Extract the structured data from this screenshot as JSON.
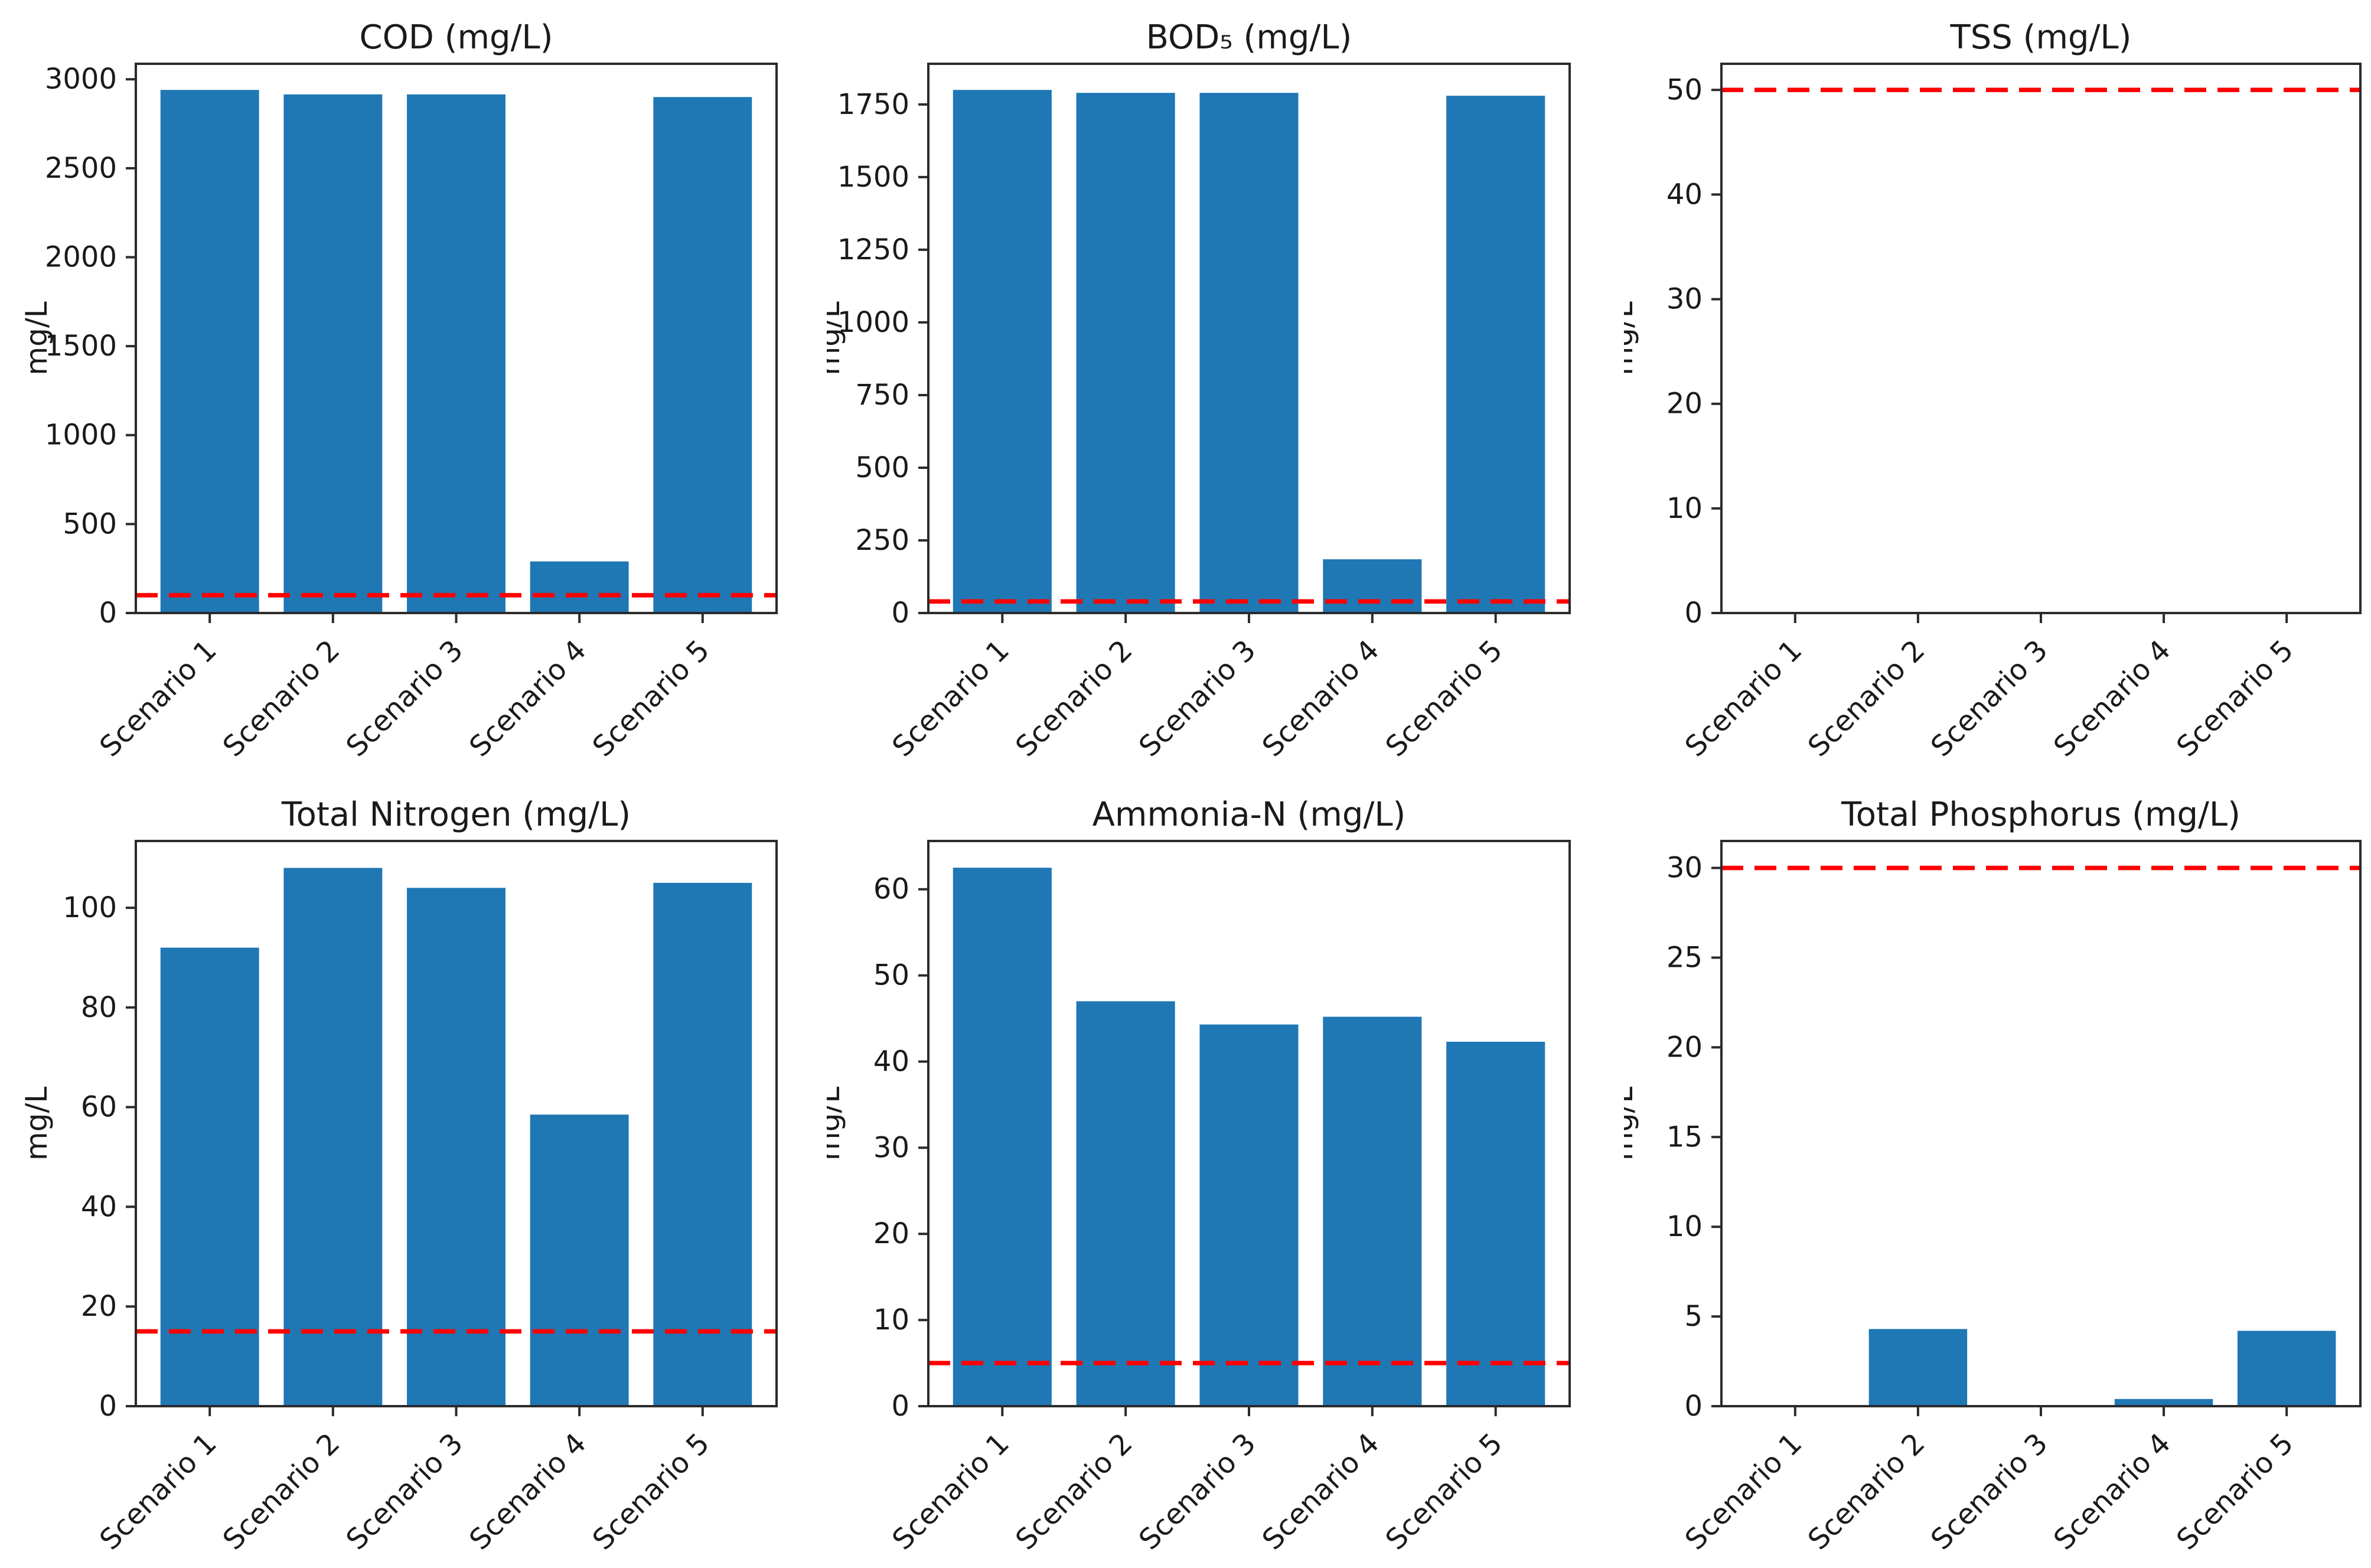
{
  "figure": {
    "bar_color": "#1f77b4",
    "limit_line_color": "#ff0000",
    "axis_color": "#2b2b2b",
    "text_color": "#1a1a1a",
    "background": "#ffffff"
  },
  "categories": [
    "Scenario 1",
    "Scenario 2",
    "Scenario 3",
    "Scenario 4",
    "Scenario 5"
  ],
  "chart_data": [
    {
      "id": "cod",
      "type": "bar",
      "title": "COD (mg/L)",
      "ylabel": "mg/L",
      "categories": [
        "Scenario 1",
        "Scenario 2",
        "Scenario 3",
        "Scenario 4",
        "Scenario 5"
      ],
      "values": [
        2940,
        2915,
        2915,
        290,
        2900
      ],
      "limit_value": 100,
      "ylim": [
        0,
        3087
      ],
      "yticks": [
        0,
        500,
        1000,
        1500,
        2000,
        2500,
        3000
      ],
      "grid": false,
      "legend": null
    },
    {
      "id": "bod5",
      "type": "bar",
      "title": "BOD₅ (mg/L)",
      "ylabel": "mg/L",
      "categories": [
        "Scenario 1",
        "Scenario 2",
        "Scenario 3",
        "Scenario 4",
        "Scenario 5"
      ],
      "values": [
        1800,
        1790,
        1790,
        185,
        1780
      ],
      "limit_value": 40,
      "ylim": [
        0,
        1890
      ],
      "yticks": [
        0,
        250,
        500,
        750,
        1000,
        1250,
        1500,
        1750
      ],
      "grid": false,
      "legend": null
    },
    {
      "id": "tss",
      "type": "bar",
      "title": "TSS (mg/L)",
      "ylabel": "mg/L",
      "categories": [
        "Scenario 1",
        "Scenario 2",
        "Scenario 3",
        "Scenario 4",
        "Scenario 5"
      ],
      "values": [
        0,
        0,
        0,
        0,
        0
      ],
      "limit_value": 50,
      "ylim": [
        0,
        52.5
      ],
      "yticks": [
        0,
        10,
        20,
        30,
        40,
        50
      ],
      "grid": false,
      "legend": null
    },
    {
      "id": "total-nitrogen",
      "type": "bar",
      "title": "Total Nitrogen (mg/L)",
      "ylabel": "mg/L",
      "categories": [
        "Scenario 1",
        "Scenario 2",
        "Scenario 3",
        "Scenario 4",
        "Scenario 5"
      ],
      "values": [
        92,
        108,
        104,
        58.5,
        105
      ],
      "limit_value": 15,
      "ylim": [
        0,
        113.4
      ],
      "yticks": [
        0,
        20,
        40,
        60,
        80,
        100
      ],
      "grid": false,
      "legend": null
    },
    {
      "id": "ammonia-n",
      "type": "bar",
      "title": "Ammonia-N (mg/L)",
      "ylabel": "mg/L",
      "categories": [
        "Scenario 1",
        "Scenario 2",
        "Scenario 3",
        "Scenario 4",
        "Scenario 5"
      ],
      "values": [
        62.5,
        47,
        44.3,
        45.2,
        42.3
      ],
      "limit_value": 5,
      "ylim": [
        0,
        65.6
      ],
      "yticks": [
        0,
        10,
        20,
        30,
        40,
        50,
        60
      ],
      "grid": false,
      "legend": null
    },
    {
      "id": "total-phosphorus",
      "type": "bar",
      "title": "Total Phosphorus (mg/L)",
      "ylabel": "mg/L",
      "categories": [
        "Scenario 1",
        "Scenario 2",
        "Scenario 3",
        "Scenario 4",
        "Scenario 5"
      ],
      "values": [
        0,
        4.3,
        0,
        0.4,
        4.2
      ],
      "limit_value": 30,
      "ylim": [
        0,
        31.5
      ],
      "yticks": [
        0,
        5,
        10,
        15,
        20,
        25,
        30
      ],
      "grid": false,
      "legend": null
    }
  ]
}
